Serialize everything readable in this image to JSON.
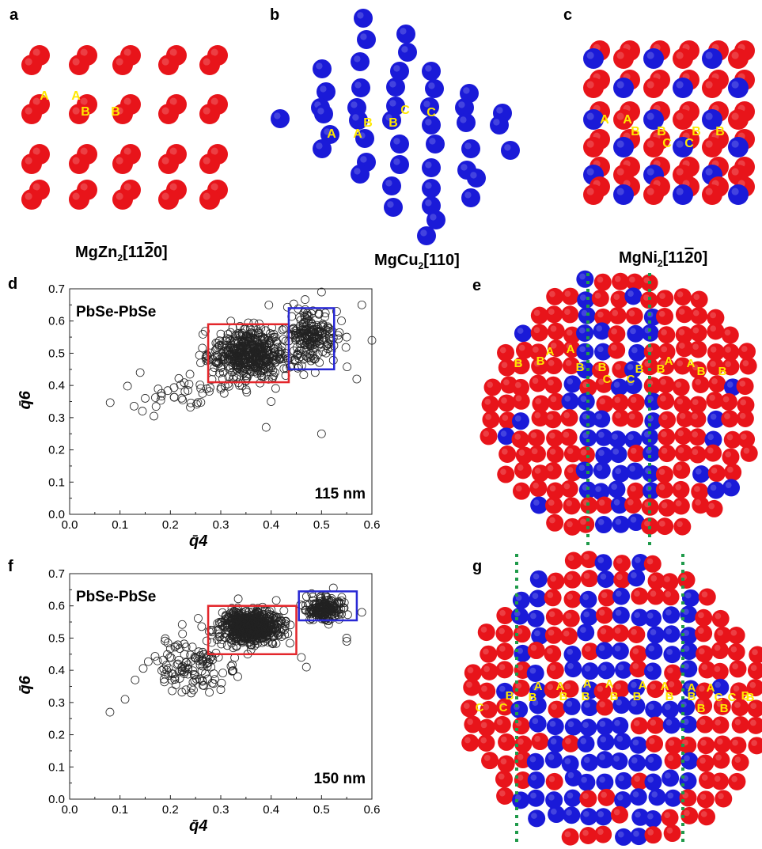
{
  "panels": {
    "a": "a",
    "b": "b",
    "c": "c",
    "d": "d",
    "e": "e",
    "f": "f",
    "g": "g"
  },
  "captions": {
    "a": {
      "base": "MgZn",
      "sub": "2",
      "pre": "[11",
      "bar": "2",
      "post": "0]"
    },
    "b": {
      "base": "MgCu",
      "sub": "2",
      "idx": "[110]"
    },
    "c": {
      "base": "MgNi",
      "sub": "2",
      "pre": "[11",
      "bar": "2",
      "post": "0]"
    }
  },
  "colors": {
    "red": "#e8141a",
    "blue": "#1a1ad8",
    "label": "#ffe800",
    "dash": "#1f9a4a",
    "rect_red": "#e3262b",
    "rect_blue": "#2828d4"
  },
  "schematic_labels": {
    "a": [
      "A",
      "A",
      "B",
      "B"
    ],
    "b": [
      "A",
      "A",
      "B",
      "B",
      "C",
      "C"
    ],
    "c": [
      "A",
      "A",
      "B",
      "B",
      "B",
      "B",
      "C",
      "C"
    ],
    "e": [
      "B",
      "B",
      "A",
      "A",
      "B",
      "B",
      "C",
      "C",
      "B",
      "B",
      "A",
      "A",
      "B",
      "B"
    ],
    "g": [
      "C",
      "C",
      "B",
      "B",
      "A",
      "A",
      "B",
      "B",
      "A",
      "A",
      "B",
      "B",
      "A",
      "A",
      "B",
      "B",
      "A",
      "A",
      "B",
      "B",
      "C",
      "C",
      "B",
      "B"
    ]
  },
  "chart_data": [
    {
      "type": "scatter",
      "title": "PbSe-PbSe",
      "annotation": "115 nm",
      "xlabel": "q̄4",
      "ylabel": "q̄6",
      "xlim": [
        0.0,
        0.6
      ],
      "ylim": [
        0.0,
        0.7
      ],
      "xticks": [
        "0.0",
        "0.1",
        "0.2",
        "0.3",
        "0.4",
        "0.5",
        "0.6"
      ],
      "yticks": [
        "0.0",
        "0.1",
        "0.2",
        "0.3",
        "0.4",
        "0.5",
        "0.6",
        "0.7"
      ],
      "boxes": [
        {
          "color": "red",
          "x": [
            0.275,
            0.435
          ],
          "y": [
            0.41,
            0.59
          ]
        },
        {
          "color": "blue",
          "x": [
            0.435,
            0.525
          ],
          "y": [
            0.45,
            0.64
          ]
        }
      ],
      "clusters": [
        {
          "cx": 0.355,
          "cy": 0.495,
          "sx": 0.035,
          "sy": 0.04,
          "n": 480
        },
        {
          "cx": 0.48,
          "cy": 0.555,
          "sx": 0.025,
          "sy": 0.045,
          "n": 200
        },
        {
          "cx": 0.22,
          "cy": 0.38,
          "sx": 0.05,
          "sy": 0.025,
          "n": 40
        }
      ],
      "outliers": [
        [
          0.14,
          0.44
        ],
        [
          0.39,
          0.27
        ],
        [
          0.5,
          0.25
        ],
        [
          0.57,
          0.42
        ],
        [
          0.55,
          0.55
        ],
        [
          0.58,
          0.65
        ],
        [
          0.6,
          0.54
        ],
        [
          0.32,
          0.6
        ],
        [
          0.26,
          0.47
        ],
        [
          0.4,
          0.35
        ],
        [
          0.15,
          0.36
        ],
        [
          0.53,
          0.63
        ],
        [
          0.5,
          0.69
        ]
      ]
    },
    {
      "type": "scatter",
      "title": "PbSe-PbSe",
      "annotation": "150 nm",
      "xlabel": "q̄4",
      "ylabel": "q̄6",
      "xlim": [
        0.0,
        0.6
      ],
      "ylim": [
        0.0,
        0.7
      ],
      "xticks": [
        "0.0",
        "0.1",
        "0.2",
        "0.3",
        "0.4",
        "0.5",
        "0.6"
      ],
      "yticks": [
        "0.0",
        "0.1",
        "0.2",
        "0.3",
        "0.4",
        "0.5",
        "0.6",
        "0.7"
      ],
      "boxes": [
        {
          "color": "red",
          "x": [
            0.275,
            0.45
          ],
          "y": [
            0.45,
            0.6
          ]
        },
        {
          "color": "blue",
          "x": [
            0.455,
            0.57
          ],
          "y": [
            0.555,
            0.645
          ]
        }
      ],
      "clusters": [
        {
          "cx": 0.36,
          "cy": 0.535,
          "sx": 0.03,
          "sy": 0.025,
          "n": 650
        },
        {
          "cx": 0.505,
          "cy": 0.59,
          "sx": 0.018,
          "sy": 0.018,
          "n": 180
        },
        {
          "cx": 0.24,
          "cy": 0.41,
          "sx": 0.04,
          "sy": 0.04,
          "n": 120
        }
      ],
      "outliers": [
        [
          0.08,
          0.27
        ],
        [
          0.11,
          0.31
        ],
        [
          0.13,
          0.37
        ],
        [
          0.47,
          0.41
        ],
        [
          0.55,
          0.5
        ],
        [
          0.58,
          0.58
        ],
        [
          0.55,
          0.49
        ],
        [
          0.3,
          0.34
        ],
        [
          0.46,
          0.44
        ]
      ]
    }
  ]
}
